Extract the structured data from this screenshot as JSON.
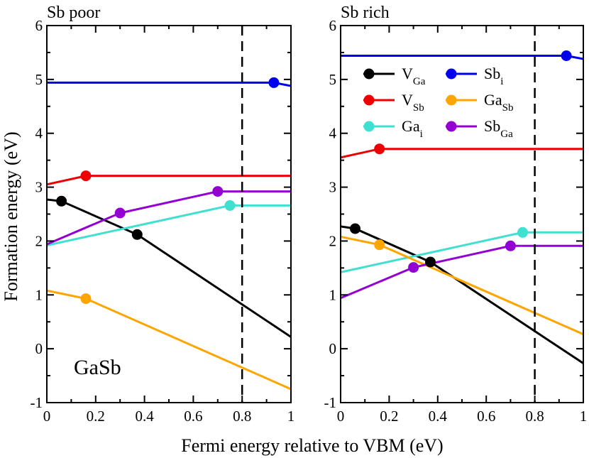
{
  "figure": {
    "ylabel": "Formation energy (eV)",
    "xlabel": "Fermi energy relative to VBM (eV)"
  },
  "legend": {
    "entries": [
      {
        "base": "V",
        "sub": "Ga",
        "color": "#000000"
      },
      {
        "base": "V",
        "sub": "Sb",
        "color": "#ee0000"
      },
      {
        "base": "Ga",
        "sub": "i",
        "color": "#40e0d0"
      },
      {
        "base": "Sb",
        "sub": "i",
        "color": "#0000ee"
      },
      {
        "base": "Ga",
        "sub": "Sb",
        "color": "#ffa500"
      },
      {
        "base": "Sb",
        "sub": "Ga",
        "color": "#9400d3"
      }
    ]
  },
  "chart_data": [
    {
      "type": "line",
      "title": "Sb poor",
      "annotation": "GaSb",
      "xlim": [
        0,
        1
      ],
      "ylim": [
        -1,
        6
      ],
      "xticks": [
        "0",
        "0.2",
        "0.4",
        "0.6",
        "0.8",
        "1"
      ],
      "yticks": [
        "-1",
        "0",
        "1",
        "2",
        "3",
        "4",
        "5",
        "6"
      ],
      "vline_x": 0.8,
      "series": [
        {
          "name": "V_Ga",
          "color": "#000000",
          "x": [
            0,
            0.06,
            0.37,
            1
          ],
          "y": [
            2.77,
            2.74,
            2.12,
            0.22
          ],
          "markers": [
            [
              0.06,
              2.74
            ],
            [
              0.37,
              2.12
            ]
          ]
        },
        {
          "name": "V_Sb",
          "color": "#ee0000",
          "x": [
            0,
            0.16,
            1
          ],
          "y": [
            3.05,
            3.21,
            3.21
          ],
          "markers": [
            [
              0.16,
              3.21
            ]
          ]
        },
        {
          "name": "Ga_i",
          "color": "#40e0d0",
          "x": [
            0,
            0.75,
            1
          ],
          "y": [
            1.92,
            2.66,
            2.66
          ],
          "markers": [
            [
              0.75,
              2.66
            ]
          ]
        },
        {
          "name": "Sb_i",
          "color": "#0000ee",
          "x": [
            0,
            0.93,
            1
          ],
          "y": [
            4.94,
            4.94,
            4.88
          ],
          "markers": [
            [
              0.93,
              4.94
            ]
          ]
        },
        {
          "name": "Ga_Sb",
          "color": "#ffa500",
          "x": [
            0,
            0.16,
            1
          ],
          "y": [
            1.08,
            0.93,
            -0.75
          ],
          "markers": [
            [
              0.16,
              0.93
            ]
          ]
        },
        {
          "name": "Sb_Ga",
          "color": "#9400d3",
          "x": [
            0,
            0.3,
            0.7,
            1
          ],
          "y": [
            1.94,
            2.52,
            2.92,
            2.92
          ],
          "markers": [
            [
              0.3,
              2.52
            ],
            [
              0.7,
              2.92
            ]
          ]
        }
      ]
    },
    {
      "type": "line",
      "title": "Sb rich",
      "xlim": [
        0,
        1
      ],
      "ylim": [
        -1,
        6
      ],
      "xticks": [
        "0",
        "0.2",
        "0.4",
        "0.6",
        "0.8",
        "1"
      ],
      "yticks": [
        "-1",
        "0",
        "1",
        "2",
        "3",
        "4",
        "5",
        "6"
      ],
      "vline_x": 0.8,
      "series": [
        {
          "name": "V_Ga",
          "color": "#000000",
          "x": [
            0,
            0.06,
            0.37,
            1
          ],
          "y": [
            2.27,
            2.23,
            1.61,
            -0.27
          ],
          "markers": [
            [
              0.06,
              2.23
            ],
            [
              0.37,
              1.61
            ]
          ]
        },
        {
          "name": "V_Sb",
          "color": "#ee0000",
          "x": [
            0,
            0.16,
            1
          ],
          "y": [
            3.55,
            3.71,
            3.71
          ],
          "markers": [
            [
              0.16,
              3.71
            ]
          ]
        },
        {
          "name": "Ga_i",
          "color": "#40e0d0",
          "x": [
            0,
            0.75,
            1
          ],
          "y": [
            1.42,
            2.16,
            2.16
          ],
          "markers": [
            [
              0.75,
              2.16
            ]
          ]
        },
        {
          "name": "Sb_i",
          "color": "#0000ee",
          "x": [
            0,
            0.93,
            1
          ],
          "y": [
            5.44,
            5.44,
            5.38
          ],
          "markers": [
            [
              0.93,
              5.44
            ]
          ]
        },
        {
          "name": "Ga_Sb",
          "color": "#ffa500",
          "x": [
            0,
            0.16,
            1
          ],
          "y": [
            2.08,
            1.93,
            0.27
          ],
          "markers": [
            [
              0.16,
              1.93
            ]
          ]
        },
        {
          "name": "Sb_Ga",
          "color": "#9400d3",
          "x": [
            0,
            0.3,
            0.7,
            1
          ],
          "y": [
            0.94,
            1.51,
            1.91,
            1.91
          ],
          "markers": [
            [
              0.3,
              1.51
            ],
            [
              0.7,
              1.91
            ]
          ]
        }
      ]
    }
  ]
}
